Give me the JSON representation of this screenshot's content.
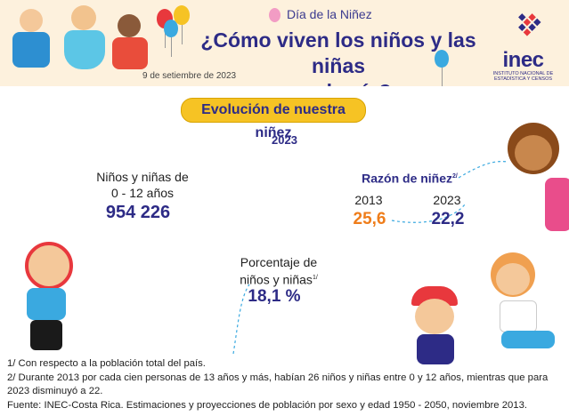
{
  "header": {
    "subtitle": "Día de la Niñez",
    "title_line1": "¿Cómo viven los niños y las niñas",
    "title_line2": "en el país?",
    "date": "9 de setiembre de 2023",
    "logo_text": "inec",
    "logo_sub_line1": "INSTITUTO NACIONAL DE",
    "logo_sub_line2": "ESTADÍSTICA Y CENSOS"
  },
  "section": {
    "title": "Evolución de nuestra niñez",
    "year": "2023"
  },
  "stats": {
    "children_label_line1": "Niños y niñas de",
    "children_label_line2": "0 - 12 años",
    "children_value": "954 226",
    "ratio_label": "Razón de niñez",
    "ratio_sup": "2/",
    "ratio_year1": "2013",
    "ratio_value1": "25,6",
    "ratio_year2": "2023",
    "ratio_value2": "22,2",
    "percent_label_line1": "Porcentaje de",
    "percent_label_line2": "niños y niñas",
    "percent_sup": "1/",
    "percent_value": "18,1 %"
  },
  "notes": {
    "note1": "1/ Con respecto a la población total del país.",
    "note2": "2/ Durante 2013 por cada cien personas de 13 años y más, habían 26 niños y niñas entre 0 y 12 años, mientras que para 2023 disminuyó a 22.",
    "source": "Fuente: INEC-Costa Rica. Estimaciones y proyecciones de población por sexo y edad 1950 - 2050, noviembre 2013."
  },
  "colors": {
    "navy": "#2d2b86",
    "orange": "#ef7d1a",
    "yellow": "#f6c324",
    "header_bg": "#fdf1dd"
  }
}
